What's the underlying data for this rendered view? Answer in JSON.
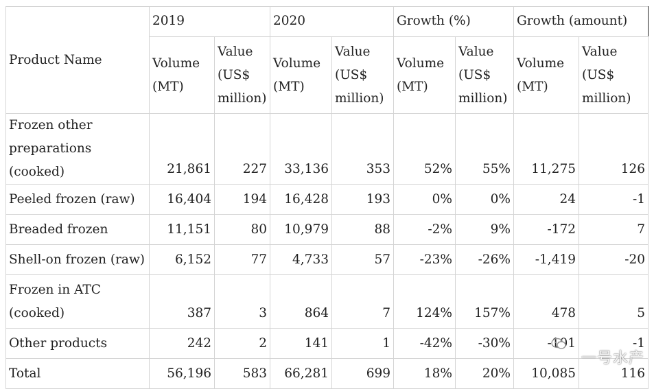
{
  "table": {
    "year_headers": [
      "2019",
      "2020",
      "Growth (%)",
      "Growth (amount)"
    ],
    "product_name_header": "Product Name",
    "sub_headers": [
      [
        "Volume",
        "(MT)"
      ],
      [
        "Value",
        "(US$",
        "million)"
      ],
      [
        "Volume",
        "(MT)"
      ],
      [
        "Value",
        "(US$",
        "million)"
      ],
      [
        "Volume",
        "(MT)"
      ],
      [
        "Value",
        "(US$",
        "million)"
      ],
      [
        "Volume",
        "(MT)"
      ],
      [
        "Value",
        "(US$",
        "million)"
      ]
    ],
    "rows": [
      {
        "name": [
          "Frozen other",
          "preparations (cooked)"
        ],
        "cells": [
          "21,861",
          "227",
          "33,136",
          "353",
          "52%",
          "55%",
          "11,275",
          "126"
        ]
      },
      {
        "name": [
          "Peeled frozen (raw)"
        ],
        "cells": [
          "16,404",
          "194",
          "16,428",
          "193",
          "0%",
          "0%",
          "24",
          "-1"
        ]
      },
      {
        "name": [
          "Breaded frozen"
        ],
        "cells": [
          "11,151",
          "80",
          "10,979",
          "88",
          "-2%",
          "9%",
          "-172",
          "7"
        ]
      },
      {
        "name": [
          "Shell-on frozen (raw)"
        ],
        "cells": [
          "6,152",
          "77",
          "4,733",
          "57",
          "-23%",
          "-26%",
          "-1,419",
          "-20"
        ]
      },
      {
        "name": [
          "Frozen in ATC",
          "(cooked)"
        ],
        "cells": [
          "387",
          "3",
          "864",
          "7",
          "124%",
          "157%",
          "478",
          "5"
        ]
      },
      {
        "name": [
          "Other products"
        ],
        "cells": [
          "242",
          "2",
          "141",
          "1",
          "-42%",
          "-30%",
          "-101",
          "-1"
        ]
      },
      {
        "name": [
          "Total"
        ],
        "cells": [
          "56,196",
          "583",
          "66,281",
          "699",
          "18%",
          "20%",
          "10,085",
          "116"
        ]
      }
    ]
  },
  "watermark": {
    "text": "一号水产",
    "icon": "wechat-icon"
  }
}
